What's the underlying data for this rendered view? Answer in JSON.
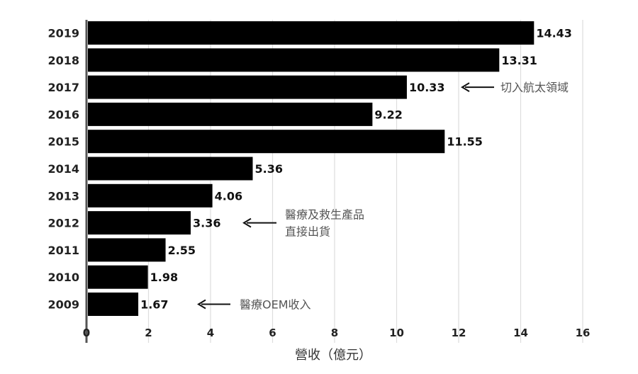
{
  "chart_data": {
    "type": "bar",
    "orientation": "horizontal",
    "categories": [
      "2019",
      "2018",
      "2017",
      "2016",
      "2015",
      "2014",
      "2013",
      "2012",
      "2011",
      "2010",
      "2009"
    ],
    "values": [
      14.43,
      13.31,
      10.33,
      9.22,
      11.55,
      5.36,
      4.06,
      3.36,
      2.55,
      1.98,
      1.67
    ],
    "data_labels": [
      "14.43",
      "13.31",
      "10.33",
      "9.22",
      "11.55",
      "5.36",
      "4.06",
      "3.36",
      "2.55",
      "1.98",
      "1.67"
    ],
    "xlabel": "營收（億元）",
    "xlim": [
      0,
      16
    ],
    "xticks": [
      "0",
      "2",
      "4",
      "6",
      "8",
      "10",
      "12",
      "14",
      "16"
    ],
    "grid": "vertical",
    "bar_color": "#000000",
    "annotations": [
      {
        "category": "2017",
        "lines": [
          "切入航太領域"
        ]
      },
      {
        "category": "2012",
        "lines": [
          "醫療及救生產品",
          "直接出貨"
        ]
      },
      {
        "category": "2009",
        "lines": [
          "醫療OEM收入"
        ]
      }
    ]
  }
}
